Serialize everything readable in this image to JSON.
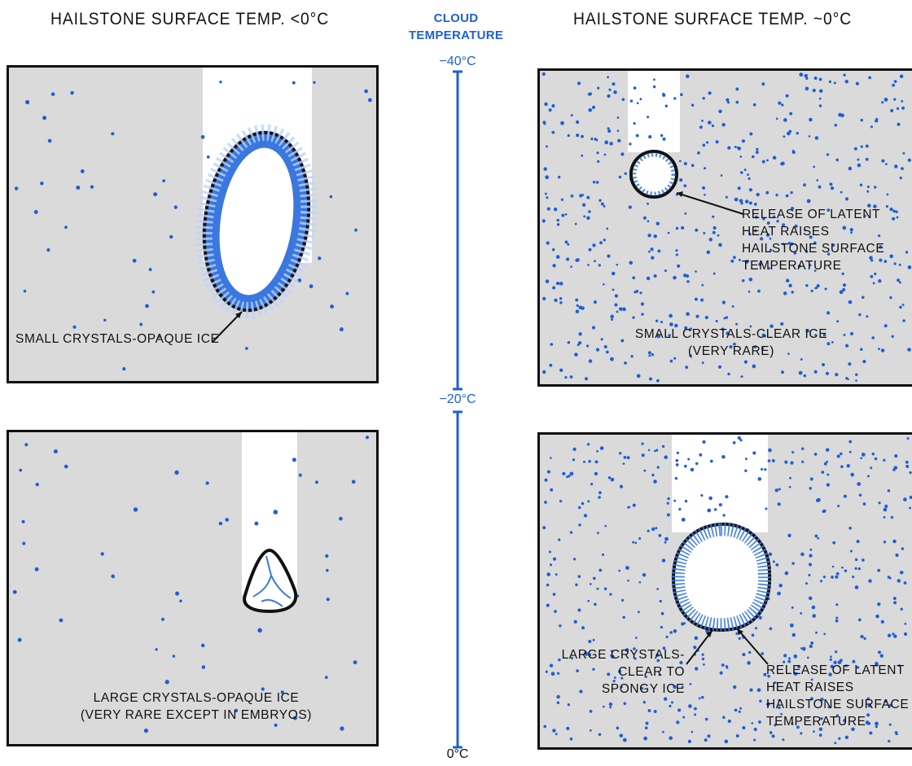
{
  "titles": {
    "left": "HAILSTONE SURFACE TEMP. <0°C",
    "right": "HAILSTONE SURFACE TEMP. ~0°C"
  },
  "scale": {
    "heading_line1": "CLOUD",
    "heading_line2": "TEMPERATURE",
    "top_label": "−40°C",
    "mid_label": "−20°C",
    "bottom_label": "0°C"
  },
  "panels": {
    "top_left": {
      "label": "SMALL CRYSTALS-OPAQUE ICE"
    },
    "top_right": {
      "annotation": [
        "RELEASE OF LATENT",
        "HEAT RAISES",
        "HAILSTONE SURFACE",
        "TEMPERATURE"
      ],
      "label_line1": "SMALL CRYSTALS-CLEAR ICE",
      "label_line2": "(VERY RARE)"
    },
    "bottom_left": {
      "label_line1": "LARGE CRYSTALS-OPAQUE ICE",
      "label_line2": "(VERY RARE EXCEPT IN EMBRYOS)"
    },
    "bottom_right": {
      "crystals_label": [
        "LARGE CRYSTALS-",
        "CLEAR TO",
        "SPONGY ICE"
      ],
      "annotation": [
        "RELEASE OF LATENT",
        "HEAT RAISES",
        "HAILSTONE SURFACE",
        "TEMPERATURE"
      ]
    }
  },
  "colors": {
    "droplet": "#1f5fd6",
    "panel_bg": "#dadada",
    "ice": "#3a78e0",
    "scale": "#1f5fd6"
  }
}
